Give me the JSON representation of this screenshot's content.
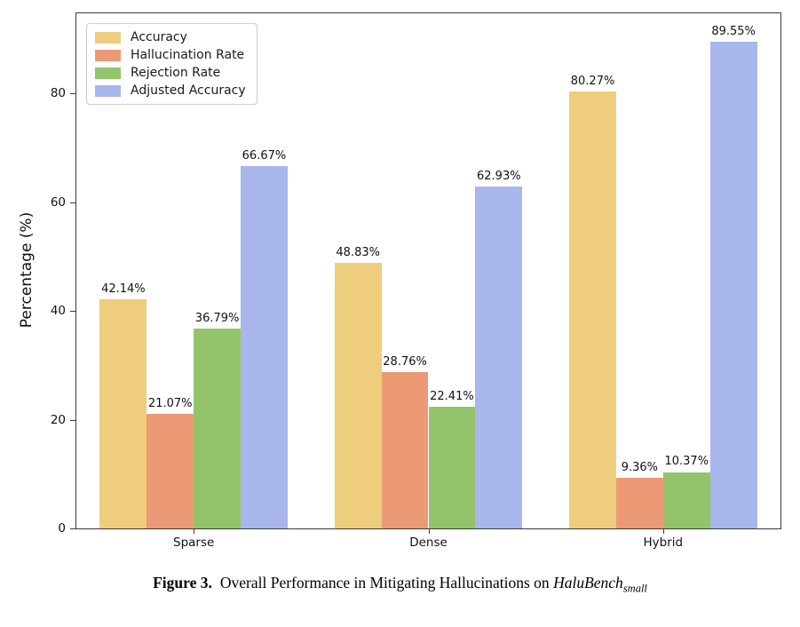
{
  "chart_data": {
    "type": "bar",
    "categories": [
      "Sparse",
      "Dense",
      "Hybrid"
    ],
    "series": [
      {
        "name": "Accuracy",
        "color": "#EECD7D",
        "values": [
          42.14,
          48.83,
          80.27
        ]
      },
      {
        "name": "Hallucination Rate",
        "color": "#EB9A75",
        "values": [
          21.07,
          28.76,
          9.36
        ]
      },
      {
        "name": "Rejection Rate",
        "color": "#93C46C",
        "values": [
          36.79,
          22.41,
          10.37
        ]
      },
      {
        "name": "Adjusted Accuracy",
        "color": "#A8B6EC",
        "values": [
          66.67,
          62.93,
          89.55
        ]
      }
    ],
    "value_label_suffix": "%",
    "ylabel": "Percentage (%)",
    "yticks": [
      0,
      20,
      40,
      60,
      80
    ],
    "ylim": [
      0,
      94.7
    ],
    "grid": false,
    "legend_position": "upper left",
    "title": ""
  },
  "caption": {
    "label": "Figure 3.",
    "text": "Overall Performance in Mitigating Hallucinations on ",
    "benchmark": "HaluBench",
    "subscript": "small"
  },
  "colors": {
    "axis": "#3a3a3a",
    "text": "#111111",
    "legend_border": "#cccccc",
    "background": "#ffffff"
  }
}
